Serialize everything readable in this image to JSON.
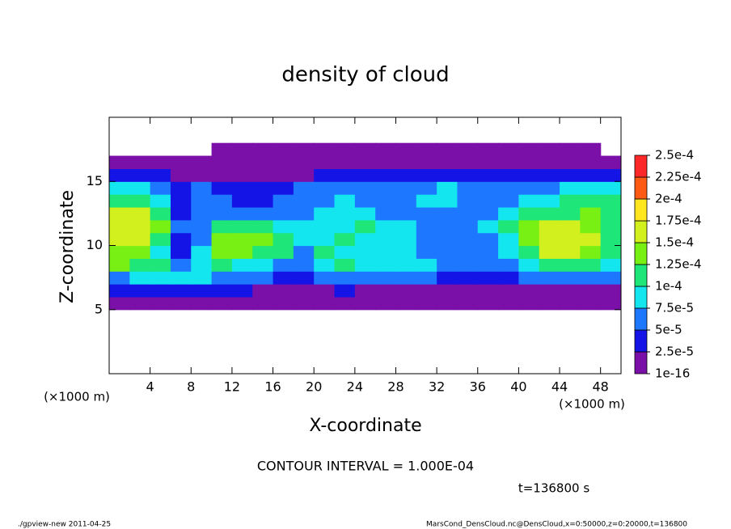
{
  "chart_data": {
    "type": "contour",
    "title": "density of cloud",
    "x_label": "X-coordinate",
    "y_label": "Z-coordinate",
    "x_unit": "(×1000 m)",
    "y_unit": "(×1000 m)",
    "contour_note": "CONTOUR INTERVAL = 1.000E-04",
    "time_label": "t=136800 s",
    "footer_left": "./gpview-new  2011-04-25",
    "footer_right": "MarsCond_DensCloud.nc@DensCloud,x=0:50000,z=0:20000,t=136800",
    "xlim": [
      0,
      50
    ],
    "ylim": [
      0,
      20
    ],
    "xticks": [
      4,
      8,
      12,
      16,
      20,
      24,
      28,
      32,
      36,
      40,
      44,
      48
    ],
    "yticks": [
      5,
      10,
      15
    ],
    "x": [
      1,
      3,
      5,
      7,
      9,
      11,
      13,
      15,
      17,
      19,
      21,
      23,
      25,
      27,
      29,
      31,
      33,
      35,
      37,
      39,
      41,
      43,
      45,
      47,
      49
    ],
    "y": [
      5.5,
      6.5,
      7.5,
      8.5,
      9.5,
      10.5,
      11.5,
      12.5,
      13.5,
      14.5,
      15.5,
      16.5,
      17.5
    ],
    "z": [
      [
        1e-05,
        1e-05,
        1e-05,
        1e-05,
        1e-05,
        1e-05,
        1e-05,
        1e-05,
        1e-05,
        1e-05,
        1e-05,
        1e-05,
        1e-05,
        1e-05,
        1e-05,
        1e-05,
        1e-05,
        1e-05,
        1e-05,
        1e-05,
        1e-05,
        1e-05,
        1e-05,
        1e-05,
        1e-05
      ],
      [
        3e-05,
        3e-05,
        3e-05,
        3e-05,
        3e-05,
        3e-05,
        3e-05,
        2e-05,
        2e-05,
        2e-05,
        2e-05,
        3e-05,
        2e-05,
        2e-05,
        2e-05,
        2e-05,
        2e-05,
        2e-05,
        2e-05,
        2e-05,
        2e-05,
        2e-05,
        2e-05,
        2e-05,
        2e-05
      ],
      [
        7e-05,
        9e-05,
        9e-05,
        8e-05,
        8e-05,
        7e-05,
        6e-05,
        5e-05,
        4e-05,
        4e-05,
        5e-05,
        6e-05,
        5e-05,
        5e-05,
        5e-05,
        5e-05,
        4e-05,
        3e-05,
        3e-05,
        4e-05,
        5e-05,
        5e-05,
        5e-05,
        5e-05,
        5e-05
      ],
      [
        0.00013,
        0.00012,
        0.0001,
        7e-05,
        8e-05,
        0.0001,
        9e-05,
        8e-05,
        6e-05,
        6e-05,
        9e-05,
        0.0001,
        9e-05,
        8e-05,
        8e-05,
        8e-05,
        6e-05,
        5e-05,
        5e-05,
        6e-05,
        8e-05,
        0.0001,
        0.0001,
        0.0001,
        9e-05
      ],
      [
        0.00014,
        0.00014,
        9e-05,
        4e-05,
        8e-05,
        0.00013,
        0.00013,
        0.00012,
        0.0001,
        7e-05,
        0.0001,
        9e-05,
        8e-05,
        8e-05,
        8e-05,
        7e-05,
        6e-05,
        6e-05,
        6e-05,
        8e-05,
        0.00012,
        0.00015,
        0.00015,
        0.00014,
        0.00012
      ],
      [
        0.00015,
        0.00015,
        0.00012,
        4e-05,
        7e-05,
        0.00014,
        0.00014,
        0.00013,
        0.00011,
        8e-05,
        9e-05,
        0.0001,
        9e-05,
        9e-05,
        8e-05,
        7e-05,
        6e-05,
        6e-05,
        7e-05,
        9e-05,
        0.00014,
        0.00016,
        0.00016,
        0.00015,
        0.00012
      ],
      [
        0.00017,
        0.00016,
        0.00014,
        5e-05,
        7e-05,
        0.00012,
        0.00011,
        0.0001,
        9e-05,
        8e-05,
        8e-05,
        9e-05,
        0.0001,
        9e-05,
        8e-05,
        7e-05,
        6e-05,
        6e-05,
        8e-05,
        0.0001,
        0.00013,
        0.00015,
        0.00015,
        0.00014,
        0.00012
      ],
      [
        0.00016,
        0.00015,
        0.00011,
        4e-05,
        7e-05,
        5e-05,
        5e-05,
        6e-05,
        6e-05,
        7e-05,
        8e-05,
        9e-05,
        8e-05,
        7e-05,
        6e-05,
        7e-05,
        7e-05,
        6e-05,
        6e-05,
        8e-05,
        0.0001,
        0.00012,
        0.00012,
        0.00013,
        0.00012
      ],
      [
        0.00011,
        0.0001,
        8e-05,
        3e-05,
        6e-05,
        5e-05,
        4e-05,
        4e-05,
        5e-05,
        6e-05,
        7e-05,
        8e-05,
        7e-05,
        6e-05,
        6e-05,
        8e-05,
        9e-05,
        7e-05,
        7e-05,
        7e-05,
        8e-05,
        9e-05,
        0.0001,
        0.00011,
        0.00011
      ],
      [
        8e-05,
        8e-05,
        6e-05,
        3e-05,
        5e-05,
        4e-05,
        4e-05,
        3e-05,
        4e-05,
        5e-05,
        6e-05,
        6e-05,
        5e-05,
        5e-05,
        6e-05,
        7e-05,
        8e-05,
        7e-05,
        7e-05,
        6e-05,
        6e-05,
        7e-05,
        8e-05,
        9e-05,
        9e-05
      ],
      [
        3e-05,
        3e-05,
        3e-05,
        2e-05,
        2e-05,
        2e-05,
        2e-05,
        2e-05,
        2e-05,
        2e-05,
        3e-05,
        3e-05,
        3e-05,
        3e-05,
        3e-05,
        3e-05,
        3e-05,
        3e-05,
        3e-05,
        3e-05,
        3e-05,
        3e-05,
        3e-05,
        3e-05,
        3e-05
      ],
      [
        1e-05,
        1e-05,
        1e-05,
        1e-05,
        1e-05,
        1e-05,
        1e-05,
        1e-05,
        1e-05,
        1e-05,
        2e-05,
        2e-05,
        2e-05,
        2e-05,
        2e-05,
        2e-05,
        2e-05,
        2e-05,
        2e-05,
        2e-05,
        1e-05,
        1e-05,
        1e-05,
        1e-05,
        1e-05
      ],
      [
        null,
        null,
        null,
        null,
        null,
        1e-05,
        1e-05,
        1e-05,
        1e-05,
        1e-05,
        1e-05,
        1e-05,
        1e-05,
        1e-05,
        1e-05,
        1e-05,
        1e-05,
        1e-05,
        1e-05,
        1e-05,
        1e-05,
        1e-05,
        1e-05,
        1e-05,
        null
      ]
    ],
    "levels": [
      1e-16,
      {
        "value": 2.5e-05,
        "label": "2.5e-5"
      },
      {
        "value": 5e-05,
        "label": "5e-5"
      },
      {
        "value": 7.5e-05,
        "label": "7.5e-5"
      },
      {
        "value": 0.0001,
        "label": "1e-4"
      },
      {
        "value": 0.000125,
        "label": "1.25e-4"
      },
      {
        "value": 0.00015,
        "label": "1.5e-4"
      },
      {
        "value": 0.000175,
        "label": "1.75e-4"
      },
      {
        "value": 0.0002,
        "label": "2e-4"
      },
      {
        "value": 0.000225,
        "label": "2.25e-4"
      },
      {
        "value": 0.00025,
        "label": "2.5e-4"
      }
    ],
    "colors": [
      "#7a10a8",
      "#1414e6",
      "#1e78ff",
      "#14e6f0",
      "#1ee678",
      "#78f014",
      "#d2f01e",
      "#ffe61e",
      "#ff5a14",
      "#ff2828"
    ]
  }
}
